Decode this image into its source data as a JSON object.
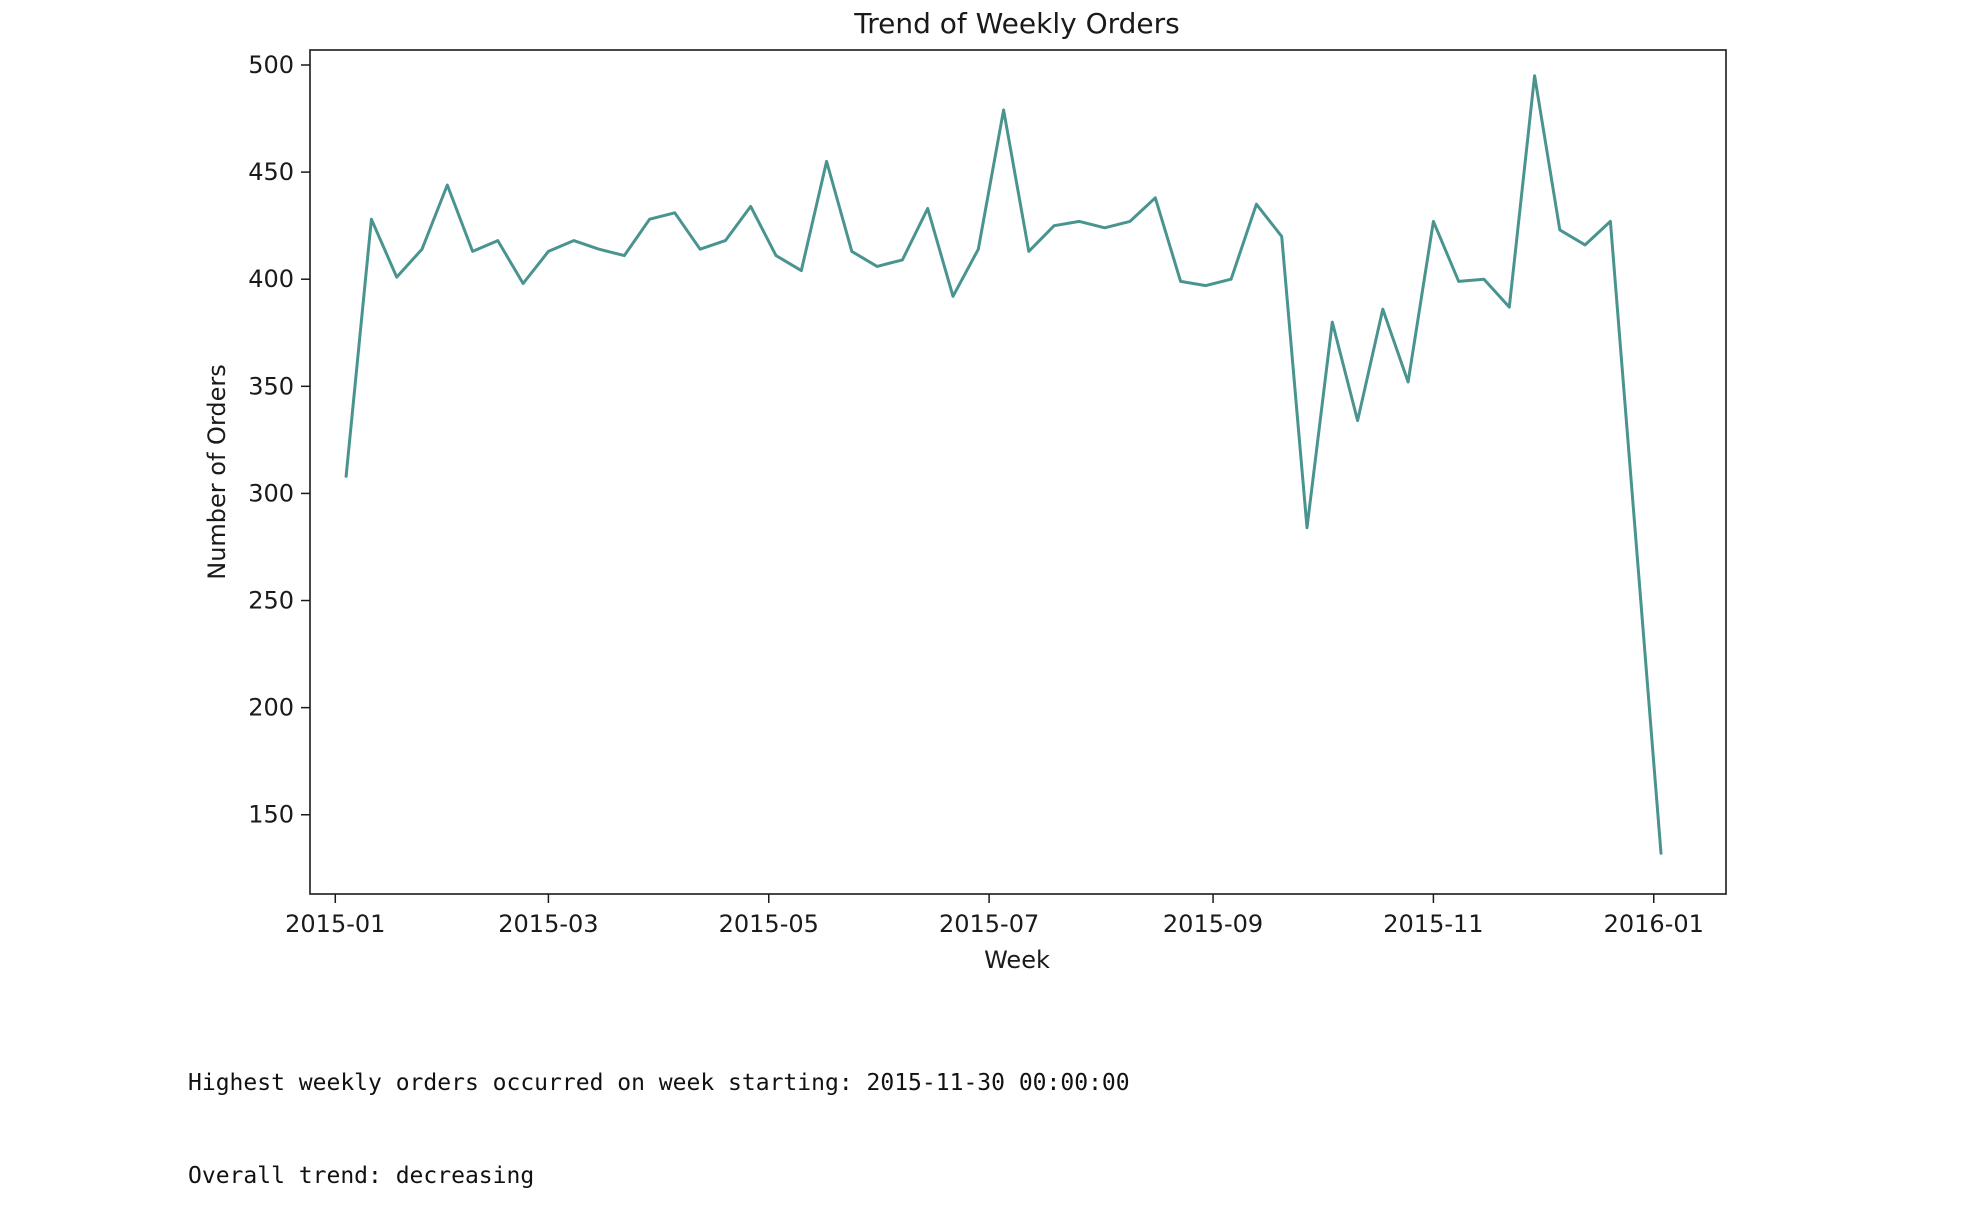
{
  "chart_data": {
    "type": "line",
    "title": "Trend of Weekly Orders",
    "xlabel": "Week",
    "ylabel": "Number of Orders",
    "x_tick_labels": [
      "2015-01",
      "2015-03",
      "2015-05",
      "2015-07",
      "2015-09",
      "2015-11",
      "2016-01"
    ],
    "y_tick_labels": [
      "150",
      "200",
      "250",
      "300",
      "350",
      "400",
      "450",
      "500"
    ],
    "xlim": [
      "2014-12-25",
      "2016-01-21"
    ],
    "ylim": [
      113,
      507
    ],
    "line_color": "#4a9490",
    "grid": false,
    "legend": false,
    "series": [
      {
        "x": [
          "2015-01-04",
          "2015-01-11",
          "2015-01-18",
          "2015-01-25",
          "2015-02-01",
          "2015-02-08",
          "2015-02-15",
          "2015-02-22",
          "2015-03-01",
          "2015-03-08",
          "2015-03-15",
          "2015-03-22",
          "2015-03-29",
          "2015-04-05",
          "2015-04-12",
          "2015-04-19",
          "2015-04-26",
          "2015-05-03",
          "2015-05-10",
          "2015-05-17",
          "2015-05-24",
          "2015-05-31",
          "2015-06-07",
          "2015-06-14",
          "2015-06-21",
          "2015-06-28",
          "2015-07-05",
          "2015-07-12",
          "2015-07-19",
          "2015-07-26",
          "2015-08-02",
          "2015-08-09",
          "2015-08-16",
          "2015-08-23",
          "2015-08-30",
          "2015-09-06",
          "2015-09-13",
          "2015-09-20",
          "2015-09-27",
          "2015-10-04",
          "2015-10-11",
          "2015-10-18",
          "2015-10-25",
          "2015-11-01",
          "2015-11-08",
          "2015-11-15",
          "2015-11-22",
          "2015-11-29",
          "2015-12-06",
          "2015-12-13",
          "2015-12-20",
          "2016-01-03"
        ],
        "values": [
          308,
          428,
          401,
          414,
          444,
          413,
          418,
          398,
          413,
          418,
          414,
          411,
          428,
          431,
          414,
          418,
          434,
          411,
          404,
          455,
          413,
          406,
          409,
          433,
          392,
          414,
          479,
          413,
          425,
          427,
          424,
          427,
          438,
          399,
          397,
          400,
          435,
          420,
          284,
          380,
          334,
          386,
          352,
          427,
          399,
          400,
          387,
          495,
          423,
          416,
          427,
          132
        ]
      }
    ]
  },
  "output": {
    "line1": "Highest weekly orders occurred on week starting: 2015-11-30 00:00:00",
    "line2": "Overall trend: decreasing"
  }
}
